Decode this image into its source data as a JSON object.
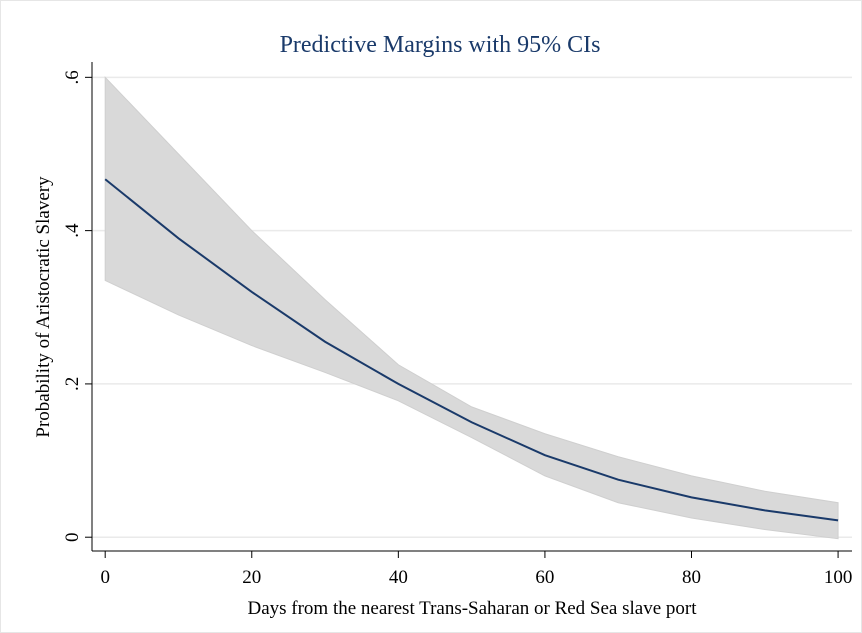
{
  "chart_data": {
    "type": "line-ci",
    "title": "Predictive Margins with 95% CIs",
    "x_label": "Days from the nearest Trans-Saharan or Red Sea slave port",
    "y_label": "Probability of Aristocratic Slavery",
    "x": [
      0,
      10,
      20,
      30,
      40,
      50,
      60,
      70,
      80,
      90,
      100
    ],
    "values": [
      0.467,
      0.39,
      0.32,
      0.255,
      0.2,
      0.15,
      0.107,
      0.075,
      0.052,
      0.035,
      0.022
    ],
    "ci_upper": [
      0.6,
      0.5,
      0.4,
      0.31,
      0.225,
      0.17,
      0.135,
      0.105,
      0.08,
      0.06,
      0.045
    ],
    "ci_lower": [
      0.335,
      0.29,
      0.25,
      0.215,
      0.178,
      0.13,
      0.08,
      0.045,
      0.025,
      0.01,
      -0.002
    ],
    "color": "#1a3a6a",
    "band_color": "#d9d9d9",
    "xlim": [
      -1.8,
      101.9
    ],
    "ylim": [
      -0.018,
      0.62
    ],
    "xticks": [
      0,
      20,
      40,
      60,
      80,
      100
    ],
    "yticks": [
      0,
      {
        "value": 0.2,
        "label": ".2"
      },
      {
        "value": 0.4,
        "label": ".4"
      },
      {
        "value": 0.6,
        "label": ".6"
      }
    ],
    "grid": true
  }
}
